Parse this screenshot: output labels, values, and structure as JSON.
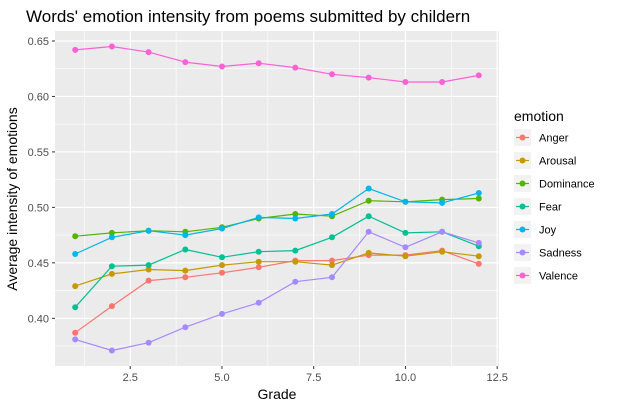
{
  "chart_data": {
    "type": "line",
    "title": "Words' emotion intensity from poems submitted by childern",
    "xlabel": "Grade",
    "ylabel": "Average intensity of emotions",
    "xlim": [
      0.45,
      12.55
    ],
    "ylim": [
      0.357,
      0.659
    ],
    "x_ticks": [
      2.5,
      5.0,
      7.5,
      10.0,
      12.5
    ],
    "x_tick_labels": [
      "2.5",
      "5.0",
      "7.5",
      "10.0",
      "12.5"
    ],
    "y_ticks": [
      0.4,
      0.45,
      0.5,
      0.55,
      0.6,
      0.65
    ],
    "y_tick_labels": [
      "0.40",
      "0.45",
      "0.50",
      "0.55",
      "0.60",
      "0.65"
    ],
    "grid": true,
    "legend": {
      "title": "emotion",
      "position": "right"
    },
    "x": [
      1,
      2,
      3,
      4,
      5,
      6,
      7,
      8,
      9,
      10,
      11,
      12
    ],
    "series": [
      {
        "name": "Anger",
        "color": "#F8766D",
        "values": [
          0.387,
          0.411,
          0.434,
          0.437,
          0.441,
          0.446,
          0.452,
          0.452,
          0.457,
          0.457,
          0.461,
          0.449
        ]
      },
      {
        "name": "Arousal",
        "color": "#C49A00",
        "values": [
          0.429,
          0.44,
          0.444,
          0.443,
          0.448,
          0.451,
          0.451,
          0.448,
          0.459,
          0.456,
          0.46,
          0.456
        ]
      },
      {
        "name": "Dominance",
        "color": "#53B400",
        "values": [
          0.474,
          0.477,
          0.479,
          0.478,
          0.482,
          0.49,
          0.494,
          0.492,
          0.506,
          0.505,
          0.507,
          0.508
        ]
      },
      {
        "name": "Fear",
        "color": "#00C094",
        "values": [
          0.41,
          0.447,
          0.448,
          0.462,
          0.455,
          0.46,
          0.461,
          0.473,
          0.492,
          0.477,
          0.478,
          0.465
        ]
      },
      {
        "name": "Joy",
        "color": "#00B6EB",
        "values": [
          0.458,
          0.473,
          0.479,
          0.475,
          0.481,
          0.491,
          0.49,
          0.494,
          0.517,
          0.505,
          0.504,
          0.513
        ]
      },
      {
        "name": "Sadness",
        "color": "#A58AFF",
        "values": [
          0.381,
          0.371,
          0.378,
          0.392,
          0.404,
          0.414,
          0.433,
          0.437,
          0.478,
          0.464,
          0.478,
          0.468
        ]
      },
      {
        "name": "Valence",
        "color": "#FB61D7",
        "values": [
          0.642,
          0.645,
          0.64,
          0.631,
          0.627,
          0.63,
          0.626,
          0.62,
          0.617,
          0.613,
          0.613,
          0.619
        ]
      }
    ]
  }
}
